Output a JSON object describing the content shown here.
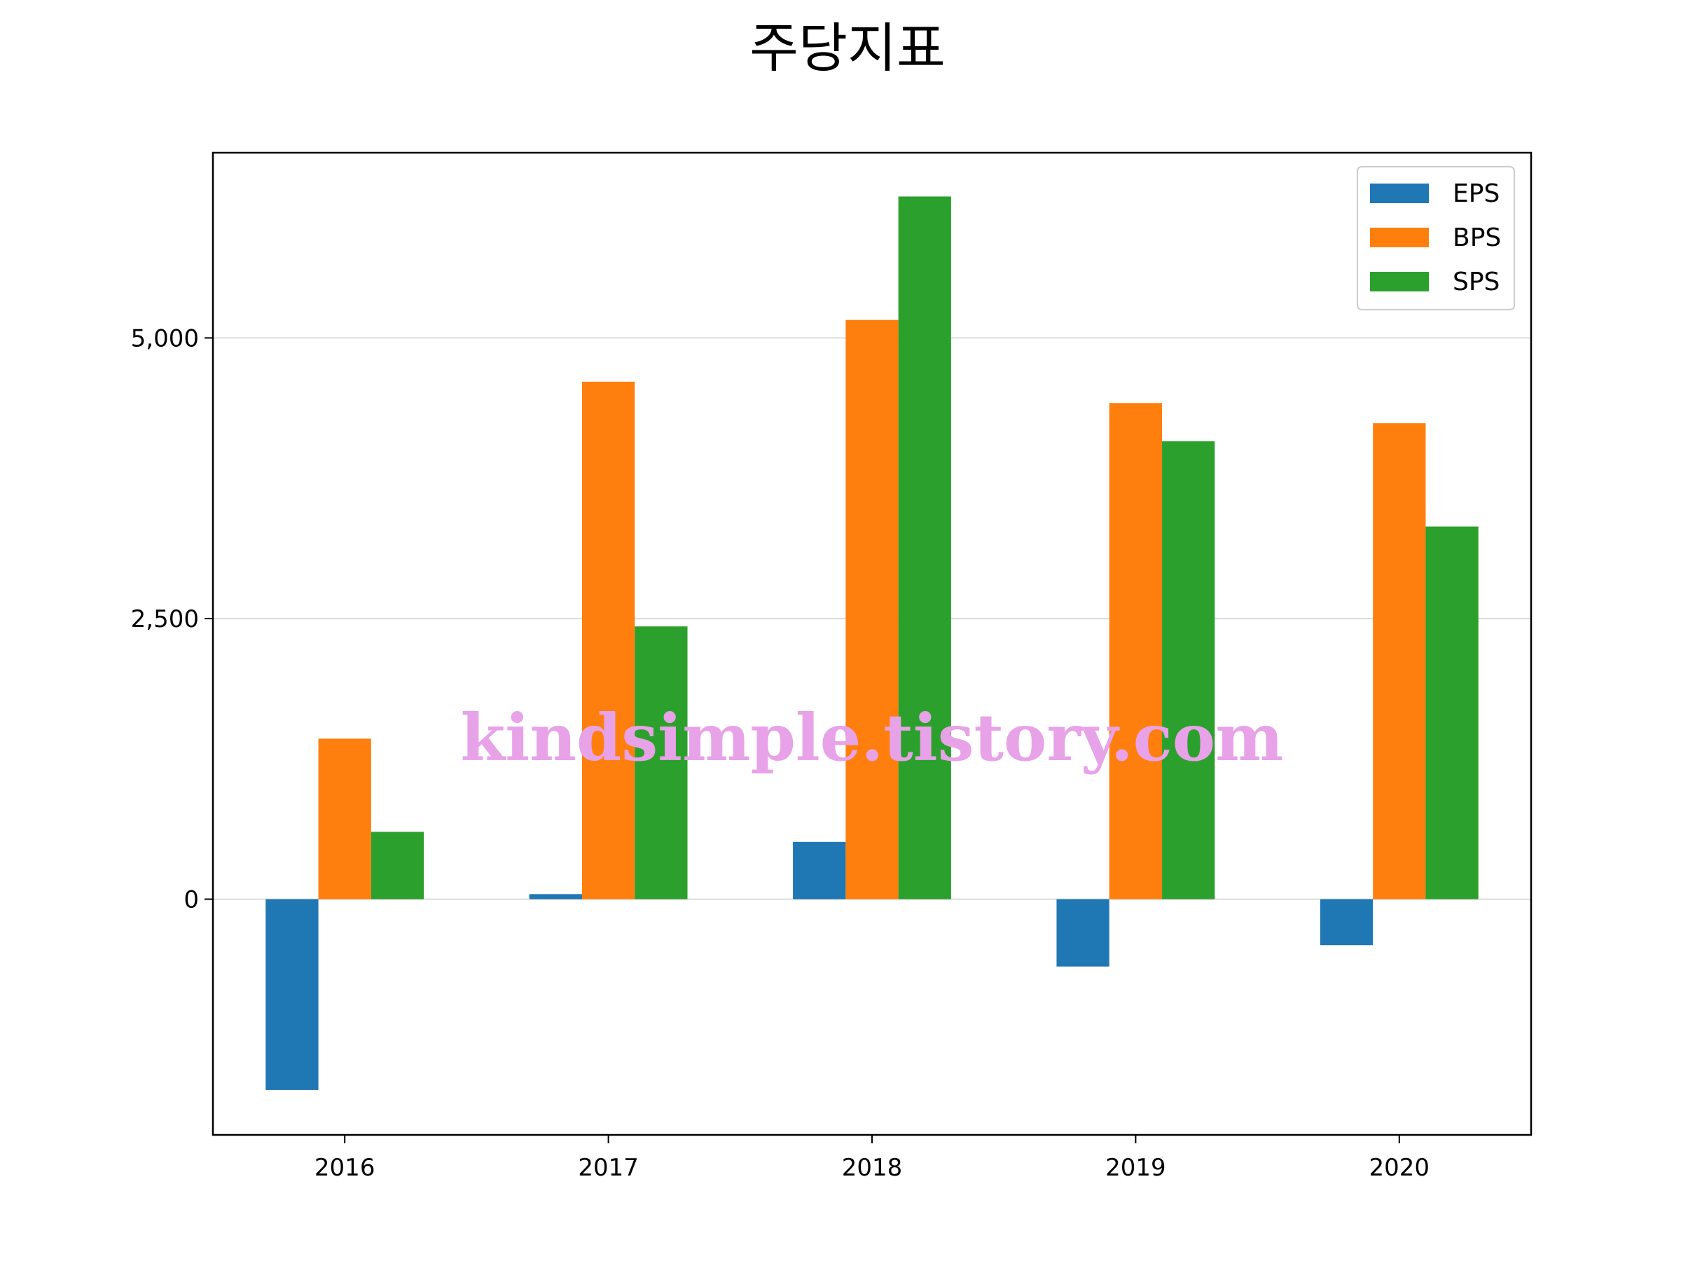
{
  "chart_data": {
    "type": "bar",
    "title": "주당지표",
    "xlabel": "",
    "ylabel": "",
    "categories": [
      "2016",
      "2017",
      "2018",
      "2019",
      "2020"
    ],
    "series": [
      {
        "name": "EPS",
        "color": "#1f77b4",
        "values": [
          -1700,
          45,
          510,
          -600,
          -410
        ]
      },
      {
        "name": "BPS",
        "color": "#ff7f0e",
        "values": [
          1430,
          4610,
          5160,
          4420,
          4240
        ]
      },
      {
        "name": "SPS",
        "color": "#2ca02c",
        "values": [
          600,
          2430,
          6260,
          4080,
          3320
        ]
      }
    ],
    "ylim": [
      -2100,
      6650
    ],
    "yticks": [
      0,
      2500,
      5000
    ],
    "ytick_labels": [
      "0",
      "2,500",
      "5,000"
    ],
    "grid": true,
    "legend_position": "top-right"
  },
  "watermark": "kindsimple.tistory.com"
}
